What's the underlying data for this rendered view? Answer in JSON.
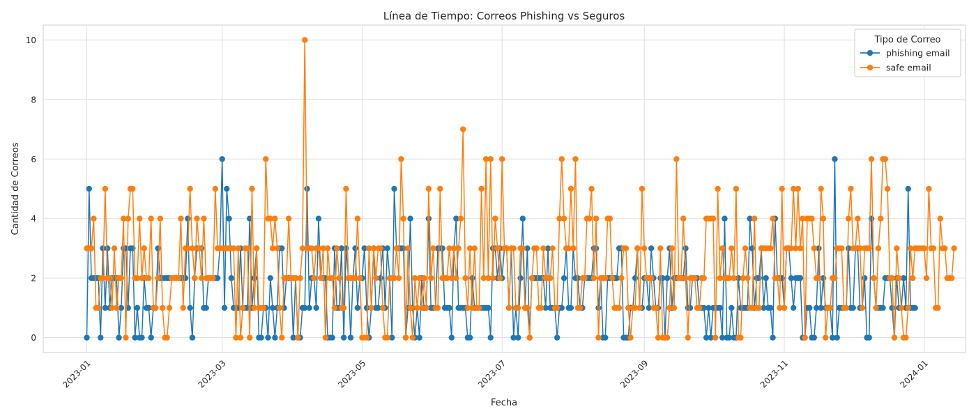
{
  "chart_data": {
    "type": "line",
    "title": "Línea de Tiempo: Correos Phishing vs Seguros",
    "xlabel": "Fecha",
    "ylabel": "Cantidad de Correos",
    "x_tick_labels": [
      "2023-01",
      "2023-03",
      "2023-05",
      "2023-07",
      "2023-09",
      "2023-11",
      "2024-01"
    ],
    "x_tick_dates": [
      "2023-01-01",
      "2023-03-01",
      "2023-05-01",
      "2023-07-01",
      "2023-09-01",
      "2023-11-01",
      "2024-01-01"
    ],
    "y_ticks": [
      0,
      2,
      4,
      6,
      8,
      10
    ],
    "xlim": [
      "2022-12-13",
      "2024-01-19"
    ],
    "ylim": [
      -0.5,
      10.5
    ],
    "grid": true,
    "legend": {
      "title": "Tipo de Correo",
      "placement": "top-right"
    },
    "series": [
      {
        "name": "phishing email",
        "color": "#1f77b4",
        "start_date": "2023-01-01",
        "values": [
          0,
          5,
          2,
          2,
          2,
          2,
          0,
          3,
          1,
          3,
          1,
          2,
          2,
          2,
          0,
          1,
          3,
          3,
          1,
          3,
          3,
          0,
          1,
          0,
          0,
          2,
          1,
          1,
          0,
          1,
          1,
          3,
          2,
          2,
          2,
          2,
          2,
          2,
          2,
          2,
          2,
          2,
          2,
          2,
          4,
          1,
          0,
          2,
          3,
          3,
          3,
          1,
          1,
          2,
          2,
          2,
          2,
          2,
          3,
          6,
          1,
          5,
          4,
          2,
          1,
          1,
          1,
          3,
          1,
          1,
          1,
          4,
          1,
          2,
          3,
          0,
          0,
          1,
          1,
          0,
          2,
          1,
          0,
          1,
          3,
          3,
          1,
          2,
          2,
          2,
          0,
          2,
          0,
          0,
          1,
          1,
          5,
          1,
          2,
          2,
          1,
          4,
          2,
          2,
          2,
          0,
          0,
          0,
          3,
          1,
          1,
          3,
          0,
          3,
          2,
          0,
          2,
          3,
          1,
          2,
          2,
          3,
          1,
          0,
          1,
          3,
          1,
          1,
          2,
          3,
          1,
          3,
          2,
          0,
          5,
          3,
          3,
          3,
          3,
          0,
          1,
          4,
          1,
          0,
          1,
          0,
          2,
          1,
          1,
          4,
          1,
          1,
          1,
          3,
          3,
          3,
          1,
          1,
          1,
          0,
          3,
          4,
          1,
          1,
          1,
          1,
          0,
          0,
          2,
          1,
          1,
          1,
          1,
          1,
          1,
          1,
          0,
          3,
          3,
          2,
          3,
          2,
          3,
          3,
          1,
          3,
          0,
          1,
          0,
          2,
          4,
          1,
          3,
          0,
          2,
          2,
          2,
          2,
          2,
          2,
          1,
          3,
          1,
          1,
          1,
          0,
          1,
          1,
          2,
          3,
          1,
          1,
          3,
          2,
          2,
          1,
          1,
          2,
          2,
          2,
          2,
          3,
          3,
          1,
          2,
          0,
          0,
          2,
          2,
          2,
          2,
          2,
          3,
          3,
          0,
          0,
          0,
          1,
          1,
          2,
          3,
          1,
          1,
          2,
          2,
          1,
          3,
          2,
          1,
          1,
          2,
          2,
          0,
          2,
          3,
          1,
          2,
          2,
          2,
          2,
          2,
          3,
          1,
          1,
          2,
          2,
          2,
          1,
          1,
          1,
          0,
          1,
          0,
          1,
          1,
          1,
          1,
          0,
          4,
          0,
          0,
          1,
          0,
          0,
          2,
          1,
          1,
          1,
          1,
          4,
          3,
          1,
          2,
          2,
          3,
          1,
          2,
          1,
          1,
          0,
          4,
          2,
          2,
          2,
          1,
          3,
          3,
          2,
          1,
          2,
          2,
          2,
          0,
          0,
          1,
          1,
          0,
          0,
          1,
          3,
          1,
          2,
          1,
          1,
          1,
          0,
          6,
          0,
          1,
          1,
          1,
          1,
          3,
          1,
          1,
          3,
          3,
          1,
          1,
          2,
          0,
          0,
          4,
          2,
          1,
          1,
          1,
          1,
          2,
          2,
          2,
          1,
          0,
          2,
          1,
          1,
          2,
          1,
          5,
          1,
          1,
          1
        ]
      },
      {
        "name": "safe email",
        "color": "#ff7f0e",
        "start_date": "2023-01-01",
        "values": [
          3,
          3,
          3,
          4,
          1,
          1,
          2,
          2,
          5,
          2,
          2,
          1,
          3,
          1,
          2,
          2,
          4,
          0,
          4,
          5,
          5,
          2,
          2,
          4,
          2,
          3,
          2,
          2,
          4,
          1,
          1,
          2,
          4,
          1,
          0,
          0,
          1,
          2,
          2,
          2,
          2,
          4,
          1,
          3,
          3,
          5,
          3,
          2,
          4,
          3,
          2,
          4,
          2,
          2,
          2,
          2,
          5,
          3,
          3,
          3,
          3,
          3,
          3,
          3,
          3,
          0,
          3,
          0,
          1,
          3,
          3,
          0,
          5,
          1,
          3,
          1,
          1,
          1,
          6,
          4,
          4,
          3,
          4,
          3,
          1,
          0,
          2,
          2,
          4,
          2,
          2,
          2,
          0,
          2,
          3,
          10,
          3,
          3,
          3,
          2,
          3,
          3,
          2,
          3,
          0,
          3,
          2,
          2,
          1,
          3,
          2,
          1,
          1,
          5,
          2,
          2,
          2,
          2,
          4,
          2,
          0,
          0,
          0,
          3,
          1,
          3,
          2,
          3,
          3,
          1,
          0,
          0,
          2,
          2,
          2,
          3,
          2,
          6,
          4,
          0,
          3,
          1,
          0,
          2,
          1,
          2,
          1,
          2,
          1,
          5,
          2,
          3,
          1,
          1,
          5,
          2,
          2,
          2,
          3,
          2,
          3,
          2,
          3,
          4,
          7,
          2,
          1,
          3,
          1,
          3,
          1,
          1,
          5,
          2,
          6,
          2,
          6,
          2,
          4,
          3,
          2,
          6,
          3,
          3,
          1,
          3,
          3,
          1,
          1,
          3,
          3,
          1,
          1,
          0,
          2,
          3,
          3,
          1,
          1,
          3,
          2,
          2,
          2,
          3,
          1,
          1,
          4,
          6,
          4,
          3,
          3,
          5,
          3,
          6,
          1,
          1,
          2,
          2,
          4,
          4,
          5,
          2,
          4,
          0,
          2,
          2,
          2,
          4,
          4,
          2,
          1,
          1,
          1,
          2,
          3,
          3,
          1,
          0,
          1,
          1,
          3,
          1,
          5,
          3,
          2,
          2,
          2,
          1,
          1,
          0,
          3,
          0,
          0,
          0,
          1,
          3,
          1,
          6,
          2,
          2,
          4,
          2,
          0,
          2,
          2,
          2,
          1,
          1,
          2,
          2,
          4,
          4,
          4,
          4,
          0,
          5,
          2,
          3,
          2,
          2,
          2,
          3,
          2,
          5,
          0,
          0,
          2,
          3,
          2,
          1,
          1,
          4,
          1,
          1,
          3,
          3,
          3,
          3,
          3,
          4,
          2,
          2,
          1,
          5,
          1,
          3,
          3,
          3,
          5,
          3,
          5,
          3,
          4,
          0,
          4,
          4,
          4,
          3,
          2,
          2,
          5,
          4,
          0,
          1,
          1,
          2,
          2,
          3,
          3,
          3,
          1,
          1,
          4,
          5,
          3,
          3,
          4,
          3,
          1,
          3,
          3,
          3,
          6,
          2,
          1,
          3,
          4,
          6,
          6,
          5,
          2,
          2,
          0,
          3,
          2,
          1,
          0,
          0,
          1,
          3,
          2,
          3,
          3,
          3,
          3,
          3,
          2,
          5,
          3,
          3,
          1,
          1,
          4,
          3,
          3,
          2,
          2,
          2,
          3
        ]
      }
    ]
  }
}
